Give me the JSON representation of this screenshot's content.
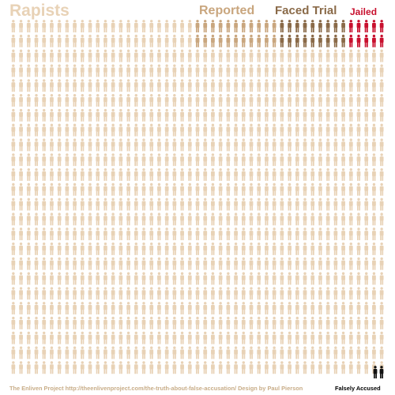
{
  "chart_data": {
    "type": "pictogram",
    "rows": 24,
    "columns": 49,
    "legend": {
      "rapists": "Rapists",
      "reported": "Reported",
      "faced_trial": "Faced Trial",
      "jailed": "Jailed",
      "falsely_accused": "Falsely Accused"
    },
    "categories": [
      {
        "key": "rapists",
        "label": "Rapists",
        "color": "#e8d2b6"
      },
      {
        "key": "reported",
        "label": "Reported",
        "color": "#c9a67e"
      },
      {
        "key": "faced_trial",
        "label": "Faced Trial",
        "color": "#8a6a48"
      },
      {
        "key": "jailed",
        "label": "Jailed",
        "color": "#c8102e"
      },
      {
        "key": "falsely",
        "label": "Falsely Accused",
        "color": "#111111"
      }
    ],
    "counts": {
      "reported": 44,
      "faced_trial": 18,
      "jailed": 10,
      "falsely_accused": 2
    },
    "footer": "The Enliven Project http://theenlivenproject.com/the-truth-about-false-accusation/ Design by Paul Pierson"
  }
}
